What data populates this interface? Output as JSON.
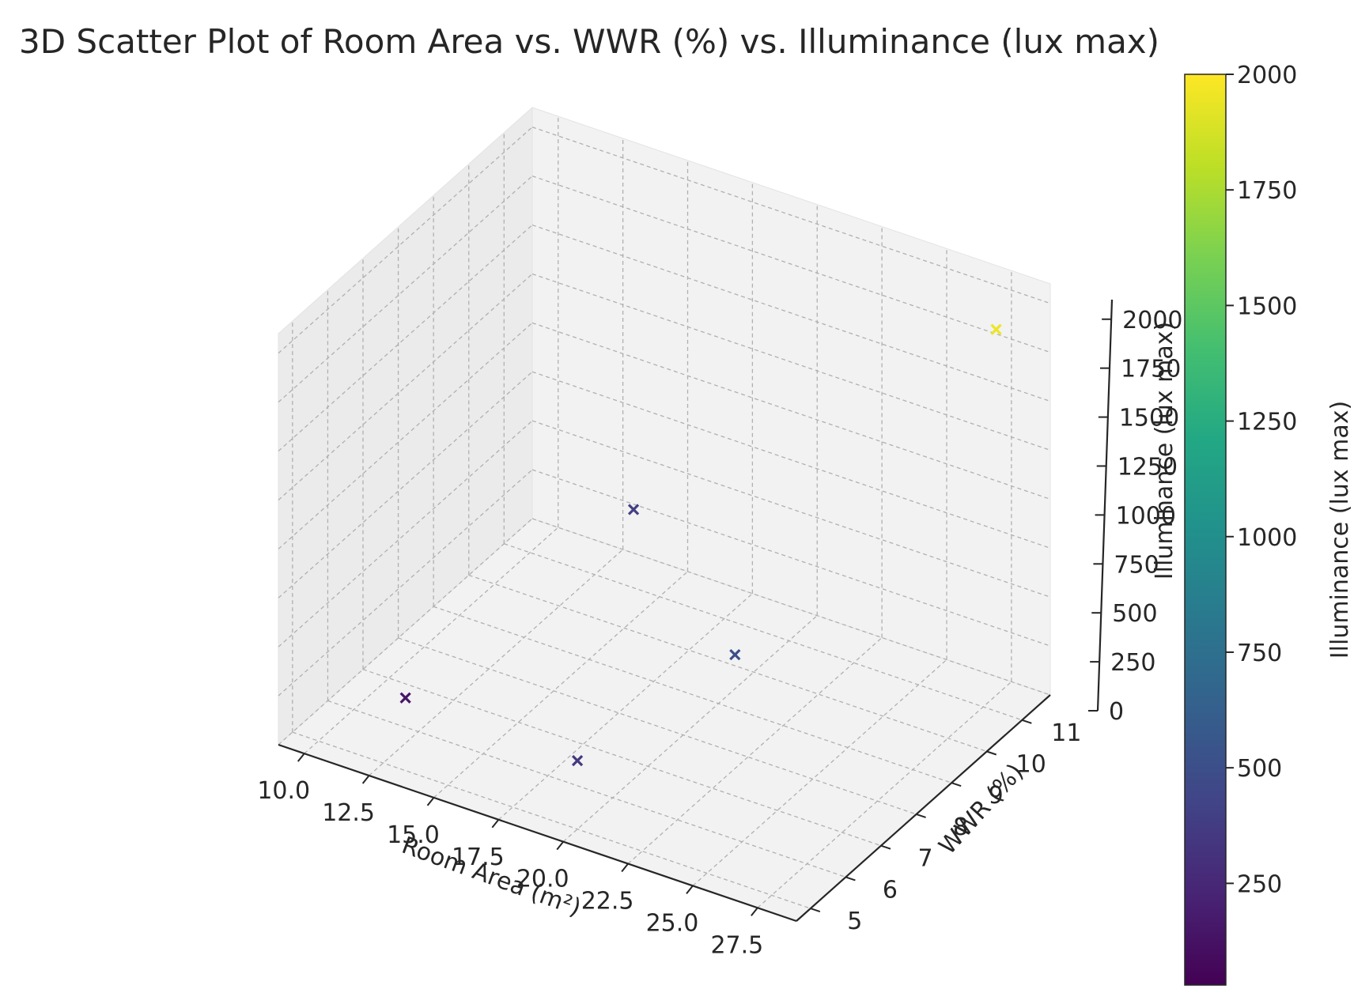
{
  "chart_data": {
    "type": "scatter",
    "title": "3D Scatter Plot of Room Area vs. WWR (%) vs. Illuminance (lux max)",
    "xlabel": "Room Area (m²)",
    "ylabel": "WWR (%)",
    "zlabel": "Illuminance (lux max)",
    "marker": "x",
    "grid": true,
    "x_ticks": [
      "10.0",
      "12.5",
      "15.0",
      "17.5",
      "20.0",
      "22.5",
      "25.0",
      "27.5"
    ],
    "y_ticks": [
      "5",
      "6",
      "7",
      "8",
      "9",
      "10",
      "11"
    ],
    "z_ticks": [
      "0",
      "250",
      "500",
      "750",
      "1000",
      "1250",
      "1500",
      "1750",
      "2000"
    ],
    "xlim": [
      9,
      29
    ],
    "ylim": [
      4.6,
      11.8
    ],
    "zlim": [
      0,
      2100
    ],
    "points": [
      {
        "x": 12,
        "y": 6,
        "z": 150
      },
      {
        "x": 20,
        "y": 5,
        "z": 350
      },
      {
        "x": 22,
        "y": 8,
        "z": 500
      },
      {
        "x": 14,
        "y": 11,
        "z": 400
      },
      {
        "x": 28,
        "y": 11,
        "z": 1950
      }
    ],
    "colorbar": {
      "label": "Illuminance (lux max)",
      "ticks": [
        "250",
        "500",
        "750",
        "1000",
        "1250",
        "1500",
        "1750",
        "2000"
      ],
      "range": [
        30,
        2000
      ],
      "colormap": "viridis"
    }
  }
}
